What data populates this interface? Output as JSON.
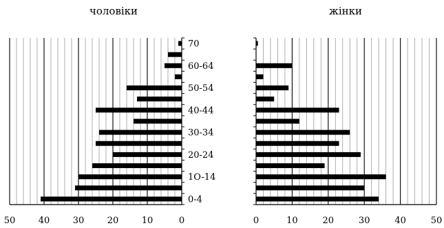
{
  "chart_data": [
    {
      "type": "bar",
      "orientation": "horizontal",
      "title": "чоловіки",
      "x_direction": "reversed",
      "xlim": [
        0,
        50
      ],
      "x_ticks": [
        "0",
        "10",
        "20",
        "30",
        "40",
        "50"
      ],
      "major_grid_step": 10,
      "minor_grid_step": 2,
      "categories": [
        "0-4",
        "",
        "1O-14",
        "",
        "20-24",
        "",
        "30-34",
        "",
        "40-44",
        "",
        "50-54",
        "",
        "60-64",
        "",
        "70"
      ],
      "values": [
        41,
        31,
        30,
        26,
        20,
        25,
        24,
        14,
        25,
        13,
        16,
        2,
        5,
        4,
        1
      ]
    },
    {
      "type": "bar",
      "orientation": "horizontal",
      "title": "жінки",
      "x_direction": "normal",
      "xlim": [
        0,
        50
      ],
      "x_ticks": [
        "0",
        "10",
        "20",
        "30",
        "40",
        "50"
      ],
      "major_grid_step": 10,
      "minor_grid_step": 2,
      "categories": [
        "0-4",
        "",
        "1O-14",
        "",
        "20-24",
        "",
        "30-34",
        "",
        "40-44",
        "",
        "50-54",
        "",
        "60-64",
        "",
        "70"
      ],
      "values": [
        34,
        30,
        36,
        19,
        29,
        23,
        26,
        12,
        23,
        5,
        9,
        2,
        10,
        0,
        0.5
      ]
    }
  ]
}
